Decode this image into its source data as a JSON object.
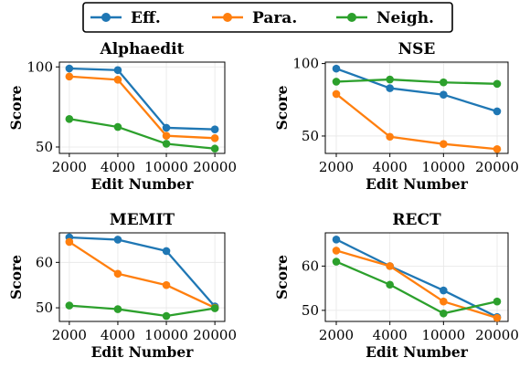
{
  "legend": {
    "items": [
      {
        "label": "Eff.",
        "color": "#1f77b4"
      },
      {
        "label": "Para.",
        "color": "#ff7f0e"
      },
      {
        "label": "Neigh.",
        "color": "#2ca02c"
      }
    ]
  },
  "chart_data": [
    {
      "type": "line",
      "title": "Alphaedit",
      "xlabel": "Edit Number",
      "ylabel": "Score",
      "categories": [
        "2000",
        "4000",
        "10000",
        "20000"
      ],
      "yticks": [
        50,
        100
      ],
      "ylim": [
        46,
        103
      ],
      "grid": true,
      "legend_position": "top",
      "series": [
        {
          "name": "Eff.",
          "color": "#1f77b4",
          "values": [
            99.0,
            98.0,
            62.0,
            61.0
          ]
        },
        {
          "name": "Para.",
          "color": "#ff7f0e",
          "values": [
            94.0,
            92.0,
            57.0,
            55.5
          ]
        },
        {
          "name": "Neigh.",
          "color": "#2ca02c",
          "values": [
            67.5,
            62.5,
            52.0,
            49.0
          ]
        }
      ]
    },
    {
      "type": "line",
      "title": "NSE",
      "xlabel": "Edit Number",
      "ylabel": "Score",
      "categories": [
        "2000",
        "4000",
        "10000",
        "20000"
      ],
      "yticks": [
        50,
        100
      ],
      "ylim": [
        38,
        101
      ],
      "grid": true,
      "legend_position": "top",
      "series": [
        {
          "name": "Eff.",
          "color": "#1f77b4",
          "values": [
            96.5,
            83.0,
            78.5,
            67.0
          ]
        },
        {
          "name": "Para.",
          "color": "#ff7f0e",
          "values": [
            79.0,
            49.5,
            44.5,
            41.0
          ]
        },
        {
          "name": "Neigh.",
          "color": "#2ca02c",
          "values": [
            87.5,
            89.0,
            87.0,
            86.0
          ]
        }
      ]
    },
    {
      "type": "line",
      "title": "MEMIT",
      "xlabel": "Edit Number",
      "ylabel": "Score",
      "categories": [
        "2000",
        "4000",
        "10000",
        "20000"
      ],
      "yticks": [
        50,
        60
      ],
      "ylim": [
        47,
        66.5
      ],
      "grid": true,
      "legend_position": "top",
      "series": [
        {
          "name": "Eff.",
          "color": "#1f77b4",
          "values": [
            65.5,
            65.0,
            62.5,
            50.3
          ]
        },
        {
          "name": "Para.",
          "color": "#ff7f0e",
          "values": [
            64.5,
            57.5,
            55.0,
            50.0
          ]
        },
        {
          "name": "Neigh.",
          "color": "#2ca02c",
          "values": [
            50.5,
            49.7,
            48.2,
            49.9
          ]
        }
      ]
    },
    {
      "type": "line",
      "title": "RECT",
      "xlabel": "Edit Number",
      "ylabel": "Score",
      "categories": [
        "2000",
        "4000",
        "10000",
        "20000"
      ],
      "yticks": [
        50,
        60
      ],
      "ylim": [
        47.5,
        67.5
      ],
      "grid": true,
      "legend_position": "top",
      "series": [
        {
          "name": "Eff.",
          "color": "#1f77b4",
          "values": [
            66.0,
            60.0,
            54.5,
            48.5
          ]
        },
        {
          "name": "Para.",
          "color": "#ff7f0e",
          "values": [
            63.5,
            60.0,
            52.0,
            48.3
          ]
        },
        {
          "name": "Neigh.",
          "color": "#2ca02c",
          "values": [
            61.0,
            55.8,
            49.3,
            52.0
          ]
        }
      ]
    }
  ]
}
